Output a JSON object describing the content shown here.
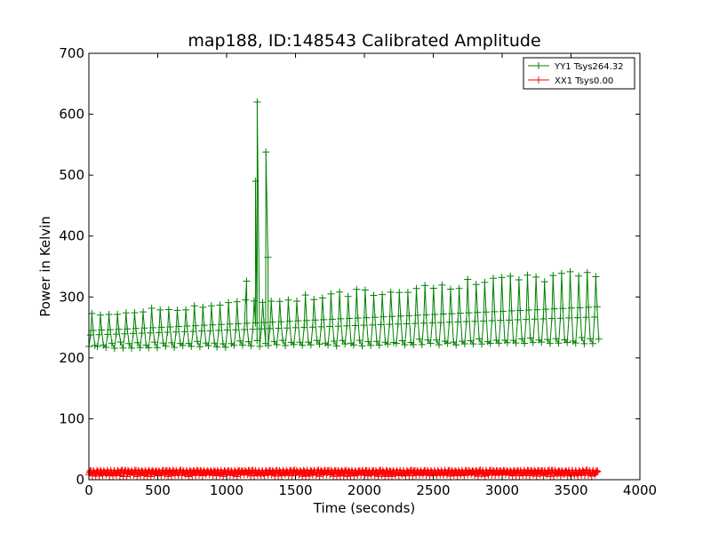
{
  "chart_data": {
    "type": "line",
    "title": "map188, ID:148543 Calibrated Amplitude",
    "xlabel": "Time (seconds)",
    "ylabel": "Power in Kelvin",
    "xlim": [
      0,
      4000
    ],
    "ylim": [
      0,
      700
    ],
    "x_ticks": [
      0,
      500,
      1000,
      1500,
      2000,
      2500,
      3000,
      3500,
      4000
    ],
    "y_ticks": [
      0,
      100,
      200,
      300,
      400,
      500,
      600,
      700
    ],
    "grid": false,
    "legend_position": "top-right",
    "marker": "plus",
    "series": [
      {
        "name": "YY1 Tsys264.32",
        "color": "#008000",
        "pattern": {
          "x_start": 0,
          "x_end": 3680,
          "period": 62,
          "baseline_start": 220,
          "baseline_end": 228,
          "peak_start": 270,
          "peak_end": 340
        },
        "spikes": [
          {
            "x": 1145,
            "y": 326
          },
          {
            "x": 1210,
            "y": 490
          },
          {
            "x": 1222,
            "y": 620
          },
          {
            "x": 1285,
            "y": 538
          },
          {
            "x": 1300,
            "y": 365
          }
        ]
      },
      {
        "name": "XX1 Tsys0.00",
        "color": "#ff0000",
        "pattern": {
          "x_start": 0,
          "x_end": 3680,
          "period": 25,
          "baseline_start": 10,
          "baseline_end": 10,
          "peak_start": 15,
          "peak_end": 15
        },
        "spikes": []
      }
    ]
  }
}
